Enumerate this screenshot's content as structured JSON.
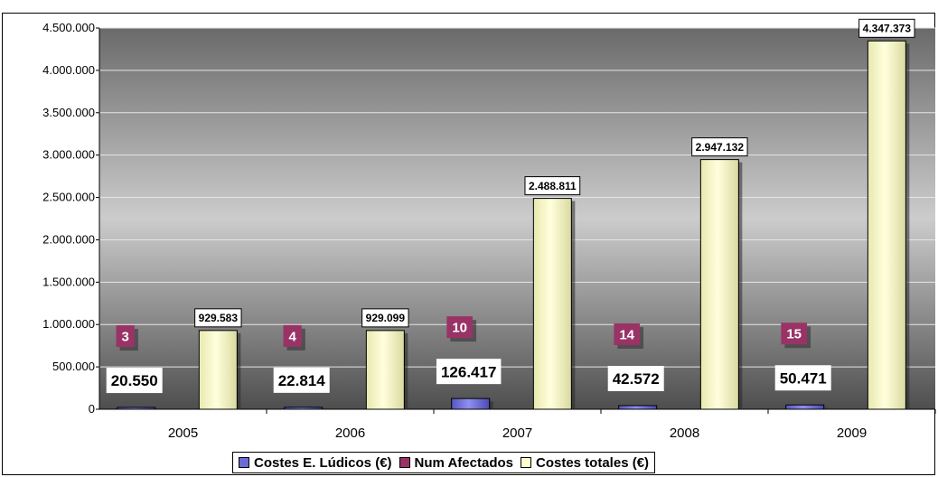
{
  "chart_data": {
    "type": "bar",
    "title": "",
    "xlabel": "",
    "ylabel": "",
    "categories": [
      "2005",
      "2006",
      "2007",
      "2008",
      "2009"
    ],
    "ylim": [
      0,
      4500000
    ],
    "ytick_labels": [
      "0",
      "500.000",
      "1.000.000",
      "1.500.000",
      "2.000.000",
      "2.500.000",
      "3.000.000",
      "3.500.000",
      "4.000.000",
      "4.500.000"
    ],
    "grid": true,
    "legend_position": "bottom",
    "series": [
      {
        "name": "Costes E. Lúdicos (€)",
        "values": [
          20550,
          22814,
          126417,
          42572,
          50471
        ],
        "labels": [
          "20.550",
          "22.814",
          "126.417",
          "42.572",
          "50.471"
        ],
        "color": "#6b6bd6"
      },
      {
        "name": "Num Afectados",
        "values": [
          3,
          4,
          10,
          14,
          15
        ],
        "labels": [
          "3",
          "4",
          "10",
          "14",
          "15"
        ],
        "color": "#993366"
      },
      {
        "name": "Costes totales (€)",
        "values": [
          929583,
          929099,
          2488811,
          2947132,
          4347373
        ],
        "labels": [
          "929.583",
          "929.099",
          "2.488.811",
          "2.947.132",
          "4.347.373"
        ],
        "color": "#ffffcc"
      }
    ]
  },
  "colors": {
    "plot_top": "#666666",
    "plot_mid": "#c8c8c8",
    "plot_bottom": "#505050",
    "bar_blue": "#6b6bd6",
    "bar_cream": "#ffffcc",
    "label_magenta": "#993366"
  }
}
